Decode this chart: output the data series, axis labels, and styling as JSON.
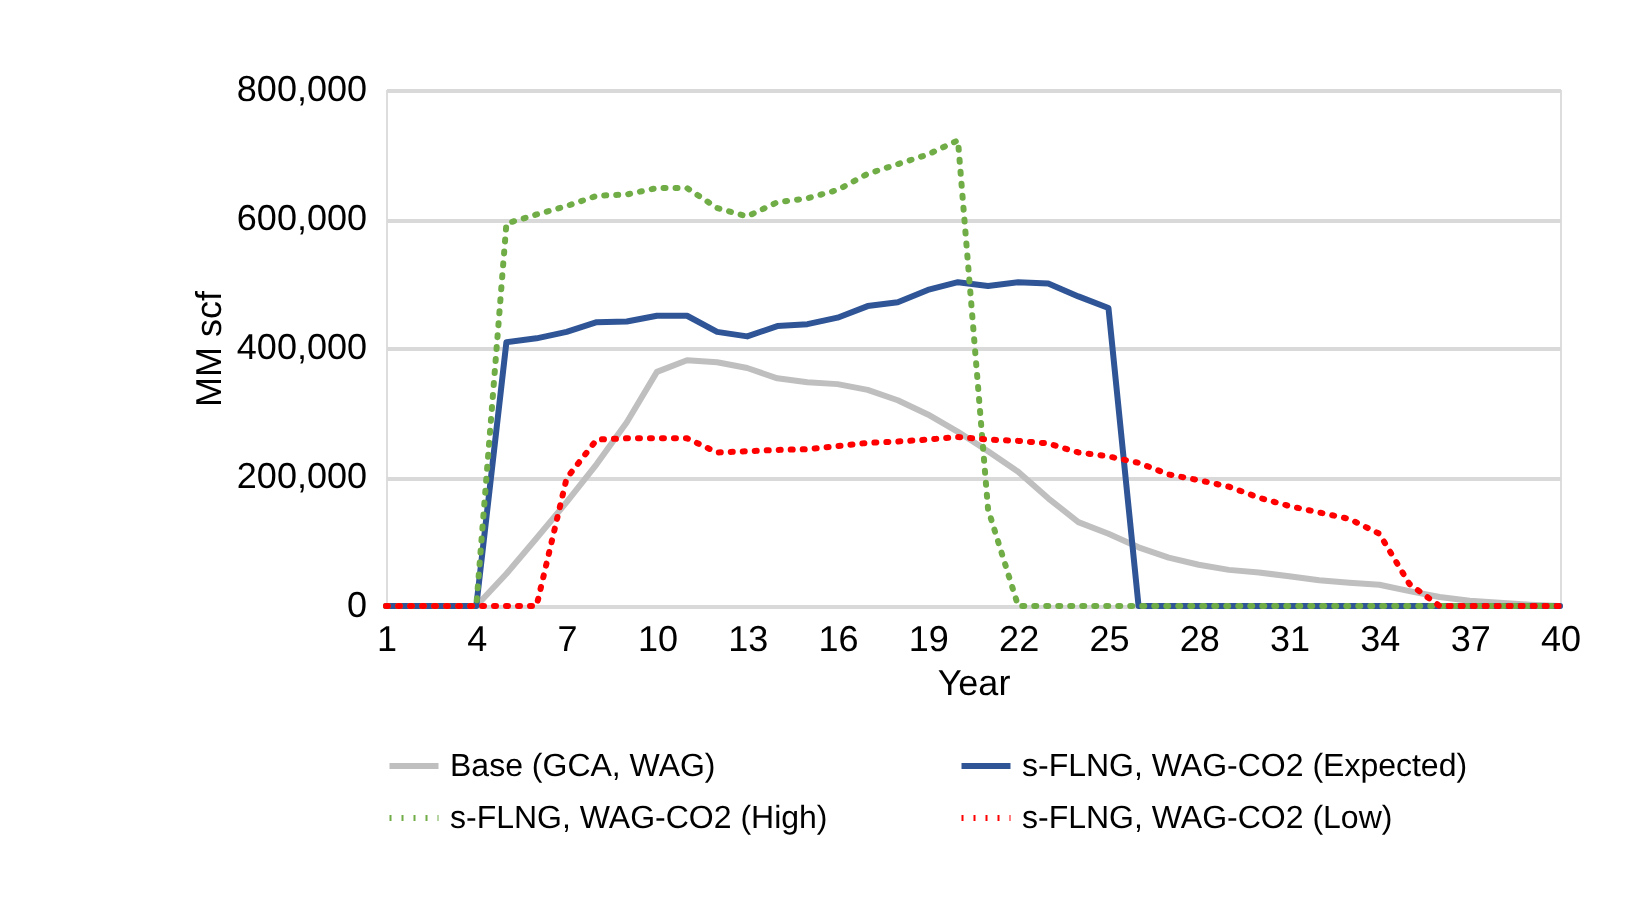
{
  "chart_data": {
    "type": "line",
    "xlabel": "Year",
    "ylabel": "MM scf",
    "x": [
      1,
      2,
      3,
      4,
      5,
      6,
      7,
      8,
      9,
      10,
      11,
      12,
      13,
      14,
      15,
      16,
      17,
      18,
      19,
      20,
      21,
      22,
      23,
      24,
      25,
      26,
      27,
      28,
      29,
      30,
      31,
      32,
      33,
      34,
      35,
      36,
      37,
      38,
      39,
      40
    ],
    "xlim": [
      1,
      40
    ],
    "xticks": [
      1,
      4,
      7,
      10,
      13,
      16,
      19,
      22,
      25,
      28,
      31,
      34,
      37,
      40
    ],
    "ylim": [
      0,
      800000
    ],
    "yticks": [
      {
        "value": 0,
        "label": "0"
      },
      {
        "value": 200000,
        "label": "200,000"
      },
      {
        "value": 400000,
        "label": "400,000"
      },
      {
        "value": 600000,
        "label": "600,000"
      },
      {
        "value": 800000,
        "label": "800,000"
      }
    ],
    "grid": "y",
    "legend": "bottom",
    "marker": "none",
    "series": [
      {
        "name": "Base (GCA, WAG)",
        "color": "#bfbfbf",
        "line_style": "solid",
        "values": [
          0,
          0,
          0,
          0,
          50000,
          105000,
          161000,
          220000,
          285000,
          363000,
          381000,
          378000,
          369000,
          353000,
          347000,
          344000,
          335000,
          319000,
          297000,
          270000,
          240000,
          208000,
          167000,
          130000,
          112000,
          91000,
          75000,
          64000,
          56000,
          52000,
          46000,
          40000,
          36000,
          33000,
          23000,
          14000,
          8000,
          5000,
          2000,
          0
        ]
      },
      {
        "name": "s-FLNG, WAG-CO2 (Expected)",
        "color": "#2f5597",
        "line_style": "solid",
        "values": [
          0,
          0,
          0,
          0,
          409000,
          415000,
          425000,
          440000,
          441000,
          450000,
          450000,
          425000,
          418000,
          434000,
          437000,
          447000,
          465000,
          471000,
          490000,
          502000,
          496000,
          502000,
          500000,
          480000,
          462000,
          0,
          0,
          0,
          0,
          0,
          0,
          0,
          0,
          0,
          0,
          0,
          0,
          0,
          0,
          0
        ]
      },
      {
        "name": "s-FLNG, WAG-CO2 (High)",
        "color": "#70ad47",
        "line_style": "dotted",
        "values": [
          0,
          0,
          0,
          0,
          593000,
          607000,
          620000,
          636000,
          638000,
          648000,
          648000,
          617000,
          604000,
          626000,
          632000,
          645000,
          670000,
          685000,
          700000,
          722000,
          150000,
          0,
          0,
          0,
          0,
          0,
          0,
          0,
          0,
          0,
          0,
          0,
          0,
          0,
          0,
          0,
          0,
          0,
          0,
          0
        ]
      },
      {
        "name": "s-FLNG, WAG-CO2 (Low)",
        "color": "#ff0000",
        "line_style": "dotted",
        "values": [
          0,
          0,
          0,
          0,
          0,
          0,
          198000,
          258000,
          260000,
          260000,
          260000,
          238000,
          240000,
          242000,
          243000,
          248000,
          253000,
          255000,
          258000,
          262000,
          258000,
          256000,
          252000,
          238000,
          232000,
          222000,
          204000,
          195000,
          185000,
          168000,
          155000,
          145000,
          135000,
          112000,
          34000,
          0,
          0,
          0,
          0,
          0
        ]
      }
    ]
  }
}
